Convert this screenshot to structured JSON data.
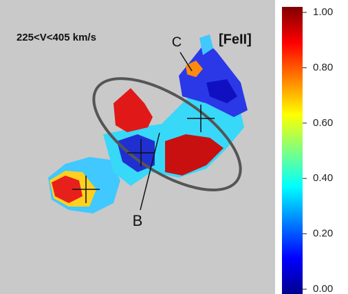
{
  "panel": {
    "title": "225<V<405 km/s",
    "species": "[FeII]",
    "labels": [
      "B",
      "C"
    ]
  },
  "colorbar": {
    "range": [
      0,
      1
    ],
    "colormap": "jet",
    "ticks": [
      {
        "value": 1,
        "label": "1.00"
      },
      {
        "value": 0.8,
        "label": "0.80"
      },
      {
        "value": 0.6,
        "label": "0.60"
      },
      {
        "value": 0.4,
        "label": "0.40"
      },
      {
        "value": 0.2,
        "label": "0.20"
      },
      {
        "value": 0,
        "label": "0.00"
      }
    ]
  }
}
